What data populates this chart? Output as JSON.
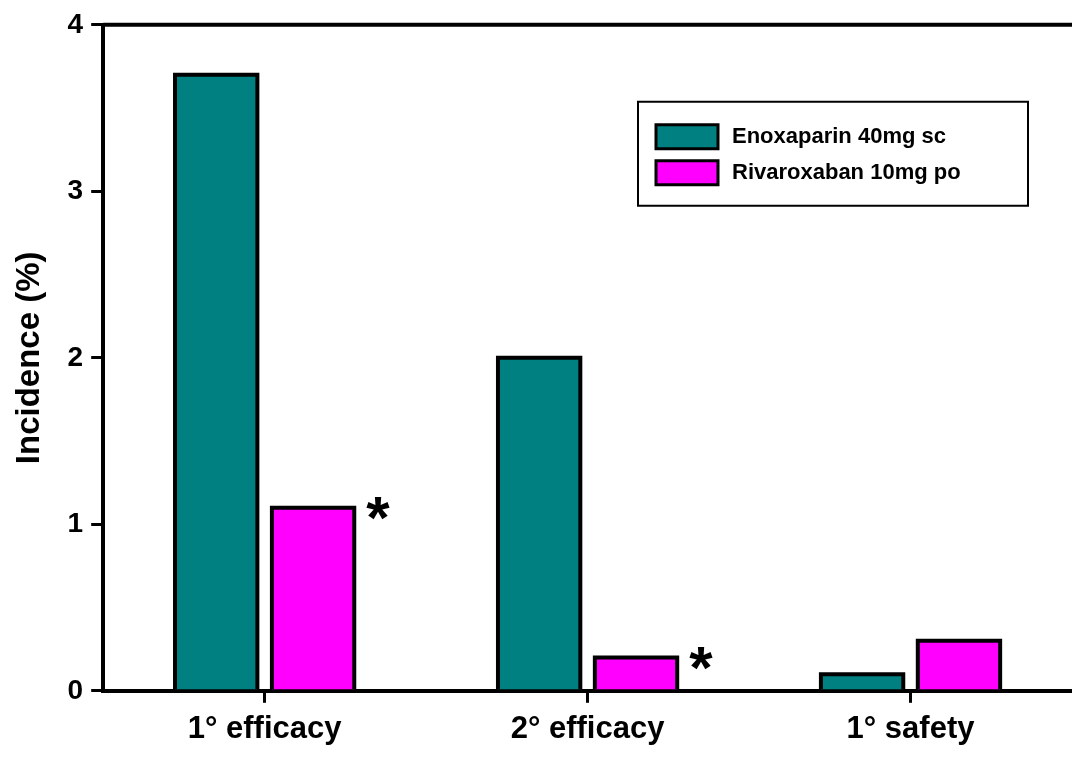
{
  "chart_data": {
    "type": "bar",
    "ylabel": "Incidence (%)",
    "categories": [
      "1° efficacy",
      "2° efficacy",
      "1° safety"
    ],
    "series": [
      {
        "name": "Enoxaparin 40mg sc",
        "color": "#008080",
        "values": [
          3.7,
          2.0,
          0.1
        ]
      },
      {
        "name": "Rivaroxaban 10mg po",
        "color": "#ff00ff",
        "values": [
          1.1,
          0.2,
          0.3
        ]
      }
    ],
    "ylim": [
      0,
      4
    ],
    "yticks": [
      0,
      1,
      2,
      3,
      4
    ],
    "grid": false,
    "legend": "top right",
    "annotations": [
      "*",
      "*"
    ]
  }
}
